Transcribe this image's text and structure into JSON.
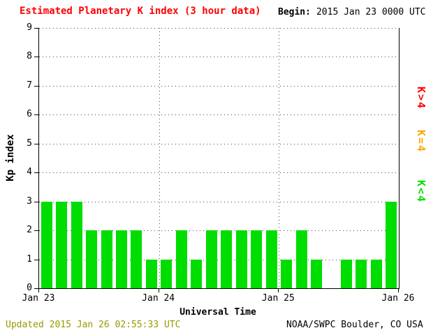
{
  "header": {
    "title": "Estimated Planetary K index (3 hour data)",
    "title_color": "#ff0000",
    "begin_label": "Begin:",
    "begin_value": "2015 Jan 23 0000 UTC"
  },
  "footer": {
    "updated": "Updated 2015 Jan 26 02:55:33 UTC",
    "updated_color": "#999900",
    "source": "NOAA/SWPC Boulder, CO USA"
  },
  "legend": [
    {
      "label": "K>4",
      "color": "#ff0000"
    },
    {
      "label": "K=4",
      "color": "#ffa500"
    },
    {
      "label": "K<4",
      "color": "#00dd00"
    }
  ],
  "chart_data": {
    "type": "bar",
    "title": "Estimated Planetary K index (3 hour data)",
    "xlabel": "Universal Time",
    "ylabel": "Kp index",
    "ylim": [
      0,
      9
    ],
    "yticks": [
      0,
      1,
      2,
      3,
      4,
      5,
      6,
      7,
      8,
      9
    ],
    "xticks": [
      "Jan 23",
      "Jan 24",
      "Jan 25",
      "Jan 26"
    ],
    "grid": true,
    "legend_position": "right",
    "bar_color": "#00dd00",
    "begin": "2015 Jan 23 0000 UTC",
    "interval_hours": 3,
    "bars_per_day": 8,
    "values": [
      3,
      3,
      3,
      2,
      2,
      2,
      2,
      1,
      1,
      2,
      1,
      2,
      2,
      2,
      2,
      2,
      1,
      2,
      1,
      null,
      1,
      1,
      1,
      3
    ]
  }
}
